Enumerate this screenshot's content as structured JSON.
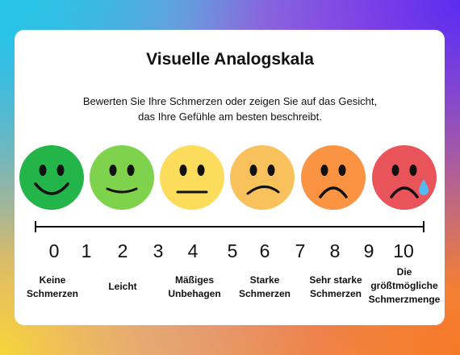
{
  "title": "Visuelle Analogskala",
  "subtitle": {
    "line1": "Bewerten Sie Ihre Schmerzen oder zeigen Sie auf das Gesicht,",
    "line2": "das Ihre Gefühle am besten beschreibt."
  },
  "faces": [
    {
      "name": "sehr-gluecklich",
      "color": "#23b54a"
    },
    {
      "name": "gluecklich",
      "color": "#7fd24c"
    },
    {
      "name": "neutral",
      "color": "#fbdd5b"
    },
    {
      "name": "traurig",
      "color": "#f8c15c"
    },
    {
      "name": "sehr-traurig",
      "color": "#fa9442"
    },
    {
      "name": "weinend",
      "color": "#e9545a"
    }
  ],
  "tear_color": "#55b9f0",
  "scale": [
    "0",
    "1",
    "2",
    "3",
    "4",
    "5",
    "6",
    "7",
    "8",
    "9",
    "10"
  ],
  "labels": [
    [
      "Keine",
      "Schmerzen"
    ],
    [
      "Leicht"
    ],
    [
      "Mäßiges",
      "Unbehagen"
    ],
    [
      "Starke",
      "Schmerzen"
    ],
    [
      "Sehr starke",
      "Schmerzen"
    ],
    [
      "Die",
      "größtmögliche",
      "Schmerzmenge"
    ]
  ]
}
